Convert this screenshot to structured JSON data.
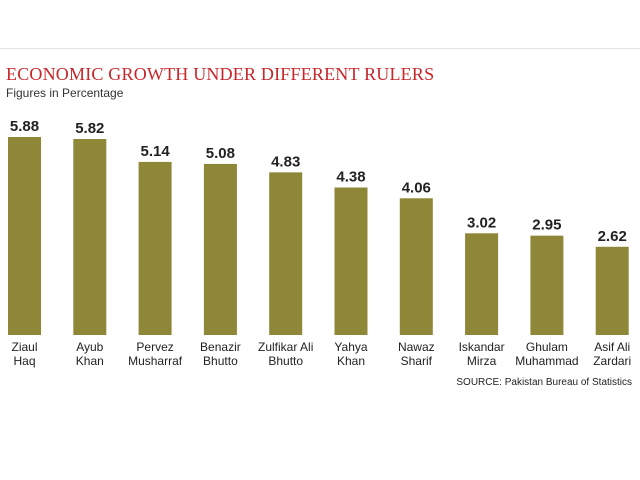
{
  "chart_data": {
    "type": "bar",
    "title": "ECONOMIC GROWTH UNDER DIFFERENT RULERS",
    "subtitle": "Figures in Percentage",
    "categories": [
      [
        "Ziaul",
        "Haq"
      ],
      [
        "Ayub",
        "Khan"
      ],
      [
        "Pervez",
        "Musharraf"
      ],
      [
        "Benazir",
        "Bhutto"
      ],
      [
        "Zulfikar Ali",
        "Bhutto"
      ],
      [
        "Yahya",
        "Khan"
      ],
      [
        "Nawaz",
        "Sharif"
      ],
      [
        "Iskandar",
        "Mirza"
      ],
      [
        "Ghulam",
        "Muhammad"
      ],
      [
        "Asif Ali",
        "Zardari"
      ]
    ],
    "values": [
      5.88,
      5.82,
      5.14,
      5.08,
      4.83,
      4.38,
      4.06,
      3.02,
      2.95,
      2.62
    ],
    "value_labels": [
      "5.88",
      "5.82",
      "5.14",
      "5.08",
      "4.83",
      "4.38",
      "4.06",
      "3.02",
      "2.95",
      "2.62"
    ],
    "ylim": [
      0,
      5.88
    ],
    "grid": false,
    "bar_color": "#8e8738",
    "source": "SOURCE: Pakistan Bureau of Statistics"
  }
}
